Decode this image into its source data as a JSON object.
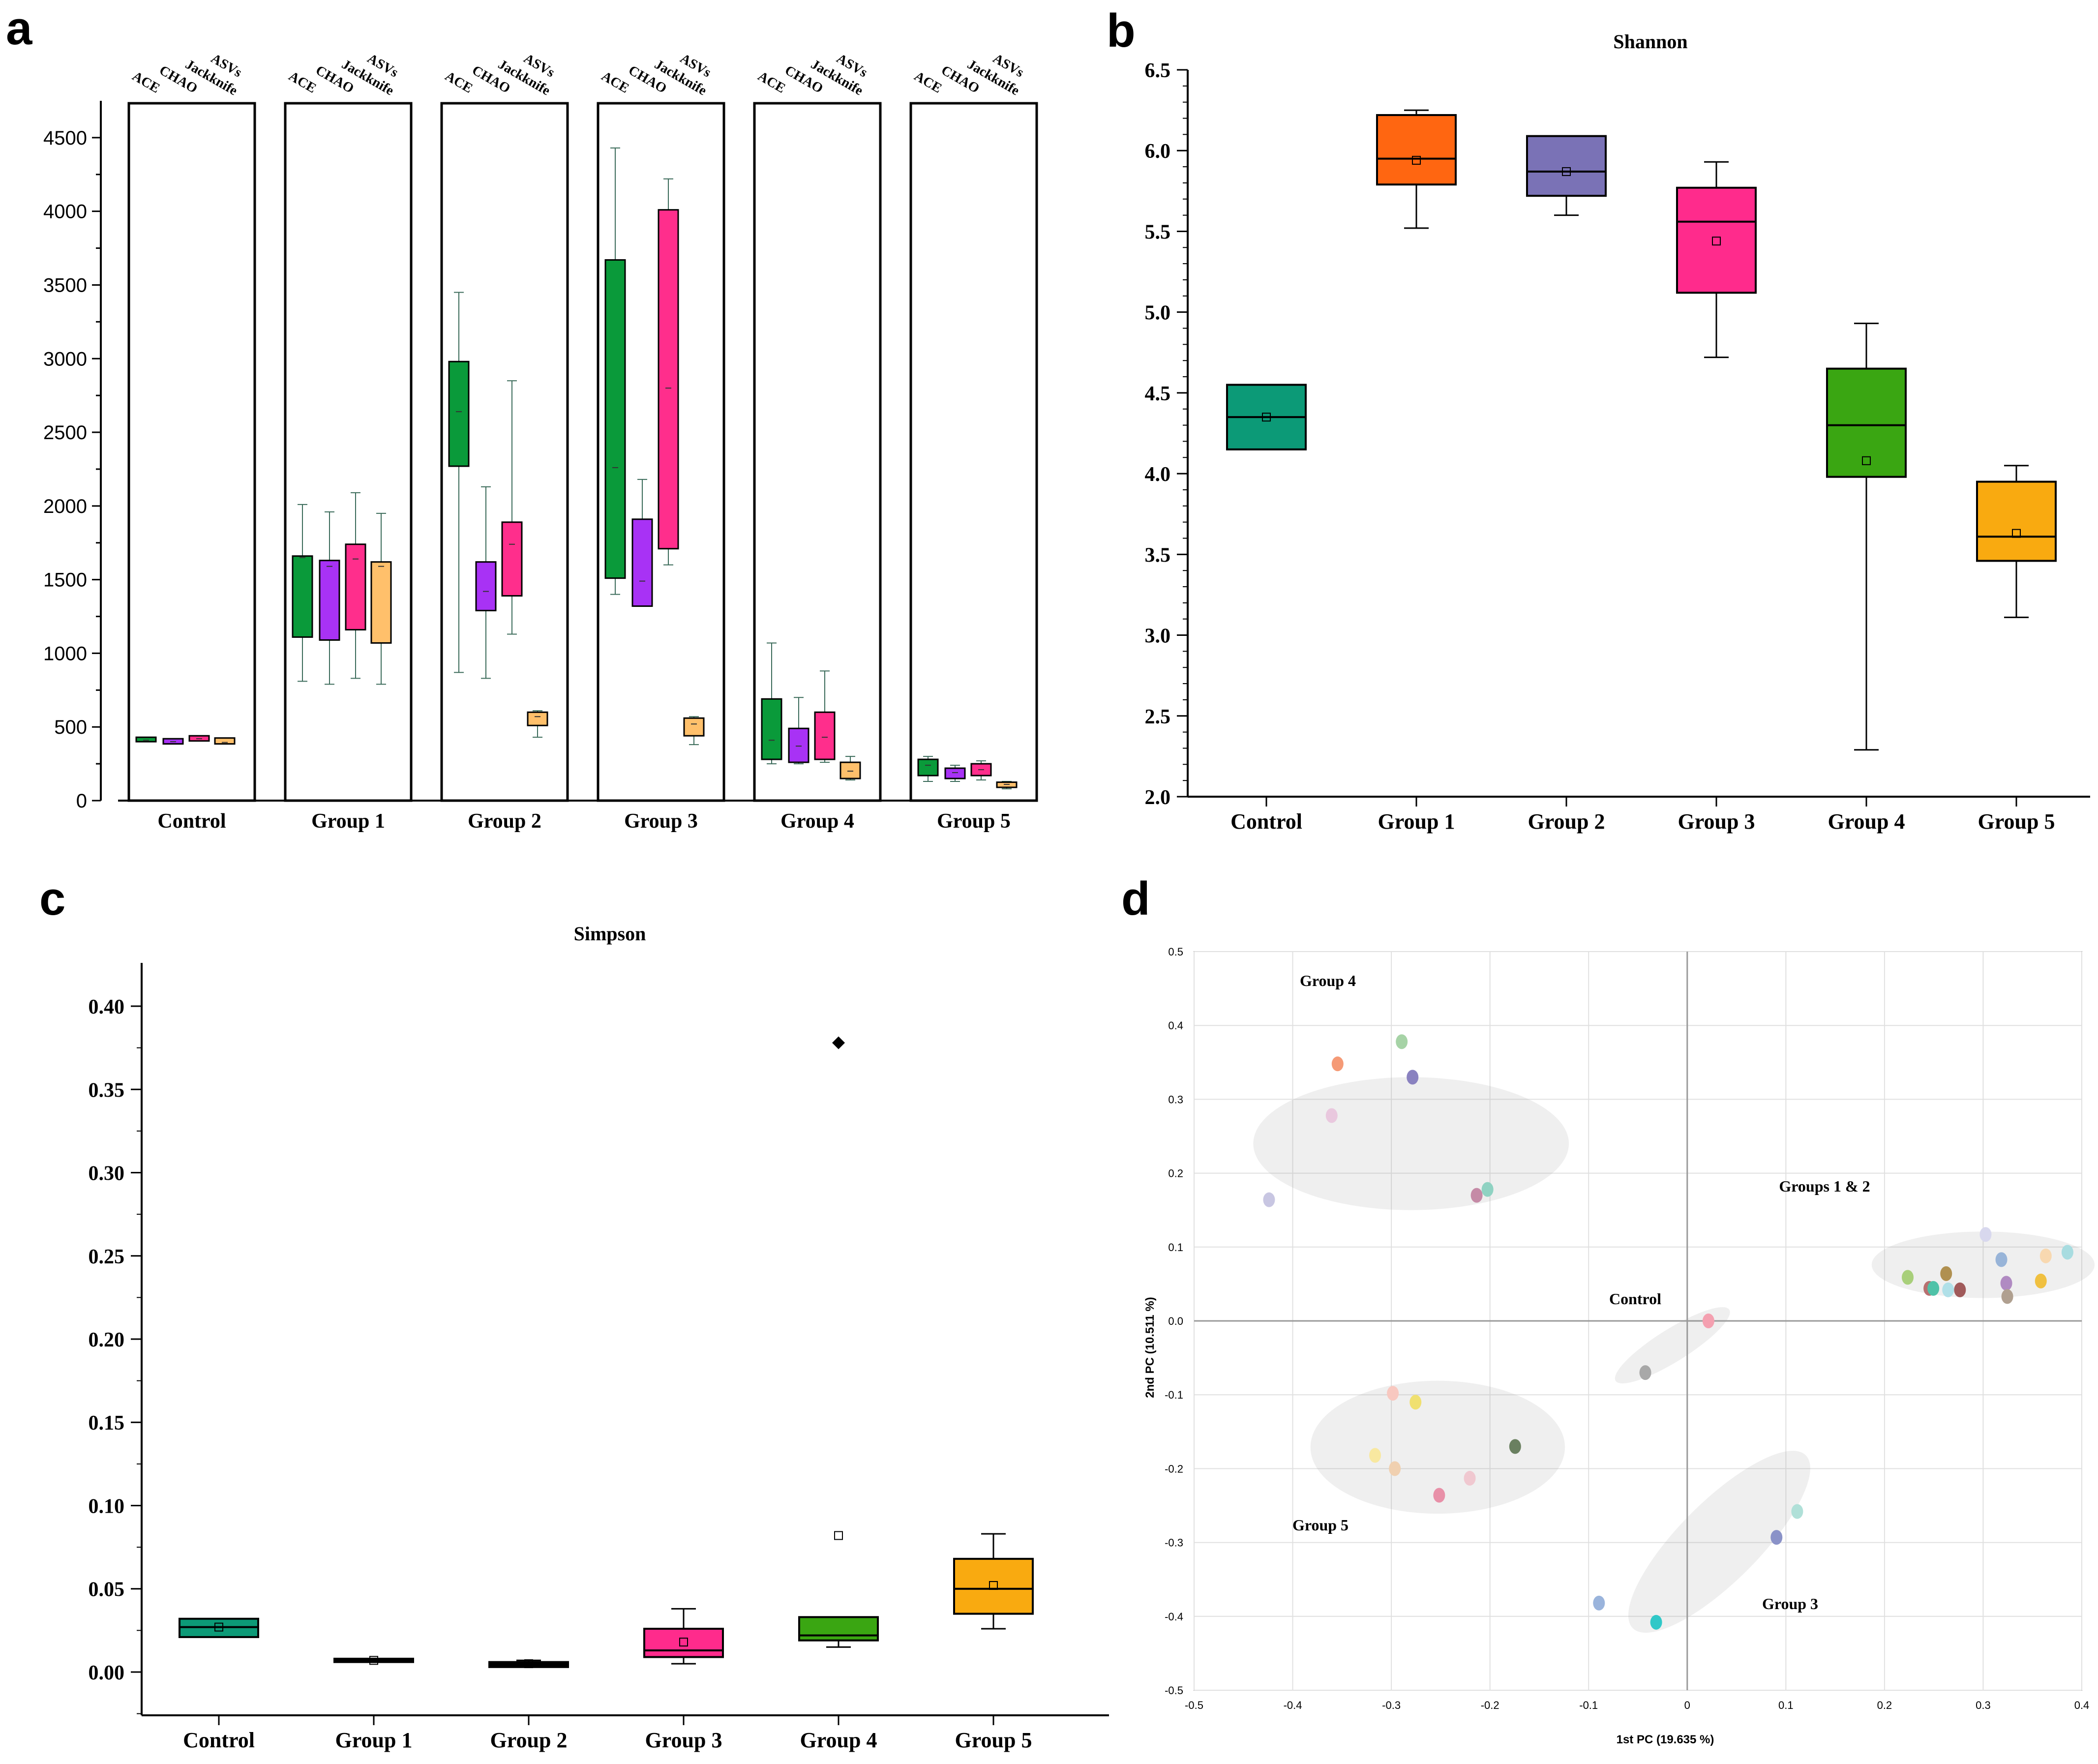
{
  "panel_letters": [
    "a",
    "b",
    "c",
    "d"
  ],
  "chart_data": [
    {
      "panel": "a",
      "type": "box",
      "title": "",
      "ylim": [
        0,
        4750
      ],
      "yticks": [
        0,
        500,
        1000,
        1500,
        2000,
        2500,
        3000,
        3500,
        4000,
        4500
      ],
      "groups": [
        "Control",
        "Group 1",
        "Group 2",
        "Group 3",
        "Group 4",
        "Group 5"
      ],
      "metrics": [
        "ACE",
        "CHAO",
        "Jackknife",
        "ASVs"
      ],
      "colors": {
        "ACE": "#0a9a3a",
        "CHAO": "#a832f5",
        "Jackknife": "#ff2e8c",
        "ASVs": "#ffc06b"
      },
      "boxes": [
        [
          {
            "wlo": 400,
            "q1": 400,
            "med": 410,
            "q3": 430,
            "whi": 430
          },
          {
            "wlo": 385,
            "q1": 385,
            "med": 400,
            "q3": 420,
            "whi": 420
          },
          {
            "wlo": 405,
            "q1": 405,
            "med": 420,
            "q3": 440,
            "whi": 440
          },
          {
            "wlo": 385,
            "q1": 385,
            "med": 395,
            "q3": 425,
            "whi": 425
          }
        ],
        [
          {
            "wlo": 810,
            "q1": 1110,
            "med": 1650,
            "q3": 1660,
            "whi": 2010
          },
          {
            "wlo": 790,
            "q1": 1090,
            "med": 1590,
            "q3": 1630,
            "whi": 1960
          },
          {
            "wlo": 830,
            "q1": 1160,
            "med": 1640,
            "q3": 1740,
            "whi": 2090
          },
          {
            "wlo": 790,
            "q1": 1070,
            "med": 1590,
            "q3": 1620,
            "whi": 1950
          }
        ],
        [
          {
            "wlo": 870,
            "q1": 2270,
            "med": 2640,
            "q3": 2980,
            "whi": 3450
          },
          {
            "wlo": 830,
            "q1": 1290,
            "med": 1420,
            "q3": 1620,
            "whi": 2130
          },
          {
            "wlo": 1130,
            "q1": 1390,
            "med": 1740,
            "q3": 1890,
            "whi": 2850
          },
          {
            "wlo": 430,
            "q1": 510,
            "med": 570,
            "q3": 600,
            "whi": 610
          }
        ],
        [
          {
            "wlo": 1400,
            "q1": 1510,
            "med": 2260,
            "q3": 3670,
            "whi": 4430
          },
          {
            "wlo": 1320,
            "q1": 1320,
            "med": 1490,
            "q3": 1910,
            "whi": 2180
          },
          {
            "wlo": 1600,
            "q1": 1710,
            "med": 2800,
            "q3": 4010,
            "whi": 4220
          },
          {
            "wlo": 380,
            "q1": 440,
            "med": 520,
            "q3": 560,
            "whi": 570
          }
        ],
        [
          {
            "wlo": 250,
            "q1": 280,
            "med": 410,
            "q3": 690,
            "whi": 1070
          },
          {
            "wlo": 250,
            "q1": 260,
            "med": 370,
            "q3": 490,
            "whi": 700
          },
          {
            "wlo": 260,
            "q1": 280,
            "med": 430,
            "q3": 600,
            "whi": 880
          },
          {
            "wlo": 140,
            "q1": 150,
            "med": 200,
            "q3": 260,
            "whi": 300
          }
        ],
        [
          {
            "wlo": 130,
            "q1": 170,
            "med": 240,
            "q3": 280,
            "whi": 300
          },
          {
            "wlo": 130,
            "q1": 150,
            "med": 190,
            "q3": 220,
            "whi": 240
          },
          {
            "wlo": 140,
            "q1": 170,
            "med": 210,
            "q3": 250,
            "whi": 270
          },
          {
            "wlo": 80,
            "q1": 90,
            "med": 110,
            "q3": 125,
            "whi": 130
          }
        ]
      ]
    },
    {
      "panel": "b",
      "type": "box",
      "title": "Shannon",
      "ylim": [
        2.0,
        6.5
      ],
      "yticks": [
        "2.0",
        "2.5",
        "3.0",
        "3.5",
        "4.0",
        "4.5",
        "5.0",
        "5.5",
        "6.0",
        "6.5"
      ],
      "categories": [
        "Control",
        "Group 1",
        "Group 2",
        "Group 3",
        "Group 4",
        "Group 5"
      ],
      "colors": [
        "#0c9a77",
        "#ff6611",
        "#7a72b6",
        "#ff2b8c",
        "#3aa612",
        "#f9aa10"
      ],
      "boxes": [
        {
          "wlo": 4.15,
          "q1": 4.15,
          "med": 4.35,
          "q3": 4.55,
          "whi": 4.55,
          "mean": 4.35
        },
        {
          "wlo": 5.52,
          "q1": 5.79,
          "med": 5.95,
          "q3": 6.22,
          "whi": 6.25,
          "mean": 5.94
        },
        {
          "wlo": 5.6,
          "q1": 5.72,
          "med": 5.87,
          "q3": 6.09,
          "whi": 6.09,
          "mean": 5.87
        },
        {
          "wlo": 4.72,
          "q1": 5.12,
          "med": 5.56,
          "q3": 5.77,
          "whi": 5.93,
          "mean": 5.44
        },
        {
          "wlo": 2.29,
          "q1": 3.98,
          "med": 4.3,
          "q3": 4.65,
          "whi": 4.93,
          "mean": 4.08
        },
        {
          "wlo": 3.11,
          "q1": 3.46,
          "med": 3.61,
          "q3": 3.95,
          "whi": 4.05,
          "mean": 3.63
        }
      ]
    },
    {
      "panel": "c",
      "type": "box",
      "title": "Simpson",
      "ylim": [
        -0.026,
        0.426
      ],
      "yticks": [
        "0.00",
        "0.05",
        "0.10",
        "0.15",
        "0.20",
        "0.25",
        "0.30",
        "0.35",
        "0.40"
      ],
      "categories": [
        "Control",
        "Group 1",
        "Group 2",
        "Group 3",
        "Group 4",
        "Group 5"
      ],
      "colors": [
        "#0c9a77",
        "#000000",
        "#000000",
        "#ff2b8c",
        "#3aa612",
        "#f9aa10"
      ],
      "boxes": [
        {
          "wlo": 0.021,
          "q1": 0.021,
          "med": 0.027,
          "q3": 0.032,
          "whi": 0.032,
          "mean": 0.027
        },
        {
          "wlo": 0.006,
          "q1": 0.006,
          "med": 0.007,
          "q3": 0.008,
          "whi": 0.008,
          "mean": 0.007
        },
        {
          "wlo": 0.003,
          "q1": 0.003,
          "med": 0.005,
          "q3": 0.006,
          "whi": 0.007,
          "mean": 0.005
        },
        {
          "wlo": 0.005,
          "q1": 0.009,
          "med": 0.013,
          "q3": 0.026,
          "whi": 0.038,
          "mean": 0.018
        },
        {
          "wlo": 0.015,
          "q1": 0.019,
          "med": 0.022,
          "q3": 0.033,
          "whi": 0.033,
          "mean": 0.082,
          "outlier": 0.378
        },
        {
          "wlo": 0.026,
          "q1": 0.035,
          "med": 0.05,
          "q3": 0.068,
          "whi": 0.083,
          "mean": 0.052
        }
      ]
    },
    {
      "panel": "d",
      "type": "scatter",
      "xlabel": "1st PC (19.635 %)",
      "ylabel": "2nd PC (10.511 %)",
      "xlim": [
        -0.5,
        0.4
      ],
      "ylim": [
        -0.5,
        0.5
      ],
      "xticks": [
        "-0.5",
        "-0.4",
        "-0.3",
        "-0.2",
        "-0.1",
        "0",
        "0.1",
        "0.2",
        "0.3",
        "0.4"
      ],
      "yticks": [
        "-0.5",
        "-0.4",
        "-0.3",
        "-0.2",
        "-0.1",
        "0.0",
        "0.1",
        "0.2",
        "0.3",
        "0.4",
        "0.5"
      ],
      "groups": [
        {
          "name": "Group 4",
          "ellipse": {
            "cx": -0.28,
            "cy": 0.24,
            "rx": 0.16,
            "ry": 0.09,
            "rot": 0
          },
          "points": [
            {
              "x": -0.424,
              "y": 0.164,
              "color": "#c8c6e2"
            },
            {
              "x": -0.3605,
              "y": 0.278,
              "color": "#e9c8de"
            },
            {
              "x": -0.3545,
              "y": 0.348,
              "color": "#f59a76"
            },
            {
              "x": -0.2895,
              "y": 0.378,
              "color": "#a6d3a6"
            },
            {
              "x": -0.2785,
              "y": 0.33,
              "color": "#8a82c0"
            },
            {
              "x": -0.2135,
              "y": 0.17,
              "color": "#c58aa6"
            },
            {
              "x": -0.2025,
              "y": 0.178,
              "color": "#8fd2c2"
            }
          ]
        },
        {
          "name": "Groups 1 & 2",
          "ellipse": {
            "cx": 0.3,
            "cy": 0.076,
            "rx": 0.113,
            "ry": 0.045,
            "rot": 0
          },
          "points": [
            {
              "x": 0.2235,
              "y": 0.059,
              "color": "#a8cf7a"
            },
            {
              "x": 0.2455,
              "y": 0.044,
              "color": "#b87070"
            },
            {
              "x": 0.2495,
              "y": 0.044,
              "color": "#4fc2a8"
            },
            {
              "x": 0.2625,
              "y": 0.064,
              "color": "#b09050"
            },
            {
              "x": 0.2645,
              "y": 0.042,
              "color": "#b0e0e8"
            },
            {
              "x": 0.2765,
              "y": 0.042,
              "color": "#a05a5a"
            },
            {
              "x": 0.3025,
              "y": 0.117,
              "color": "#d8d8ee"
            },
            {
              "x": 0.3185,
              "y": 0.083,
              "color": "#98b4d8"
            },
            {
              "x": 0.3235,
              "y": 0.051,
              "color": "#b08ac2"
            },
            {
              "x": 0.3245,
              "y": 0.033,
              "color": "#b0a090"
            },
            {
              "x": 0.3585,
              "y": 0.054,
              "color": "#f0c040"
            },
            {
              "x": 0.3635,
              "y": 0.088,
              "color": "#f8d8b0"
            },
            {
              "x": 0.3855,
              "y": 0.093,
              "color": "#a8dce0"
            }
          ]
        },
        {
          "name": "Control",
          "ellipse": {
            "cx": -0.015,
            "cy": -0.033,
            "rx": 0.068,
            "ry": 0.022,
            "rot": -32
          },
          "points": [
            {
              "x": -0.0425,
              "y": -0.07,
              "color": "#a8a8a8"
            },
            {
              "x": 0.0215,
              "y": 0.0,
              "color": "#f4a0b0"
            }
          ]
        },
        {
          "name": "Group 5",
          "ellipse": {
            "cx": -0.253,
            "cy": -0.171,
            "rx": 0.129,
            "ry": 0.09,
            "rot": 0
          },
          "points": [
            {
              "x": -0.3165,
              "y": -0.182,
              "color": "#f8e8a0"
            },
            {
              "x": -0.2985,
              "y": -0.098,
              "color": "#f8c8c0"
            },
            {
              "x": -0.2965,
              "y": -0.2,
              "color": "#f0d0b0"
            },
            {
              "x": -0.2755,
              "y": -0.11,
              "color": "#f0e070"
            },
            {
              "x": -0.2515,
              "y": -0.236,
              "color": "#e890a8"
            },
            {
              "x": -0.2205,
              "y": -0.213,
              "color": "#f0c8d0"
            },
            {
              "x": -0.1745,
              "y": -0.17,
              "color": "#6a8060"
            }
          ]
        },
        {
          "name": "Group 3",
          "ellipse": {
            "cx": 0.0325,
            "cy": -0.299,
            "rx": 0.124,
            "ry": 0.054,
            "rot": -45
          },
          "points": [
            {
              "x": -0.0895,
              "y": -0.382,
              "color": "#9ab4dc"
            },
            {
              "x": -0.0315,
              "y": -0.408,
              "color": "#30c8c8"
            },
            {
              "x": 0.0905,
              "y": -0.293,
              "color": "#8a92c8"
            },
            {
              "x": 0.1115,
              "y": -0.258,
              "color": "#b0e0d8"
            }
          ]
        }
      ]
    }
  ]
}
